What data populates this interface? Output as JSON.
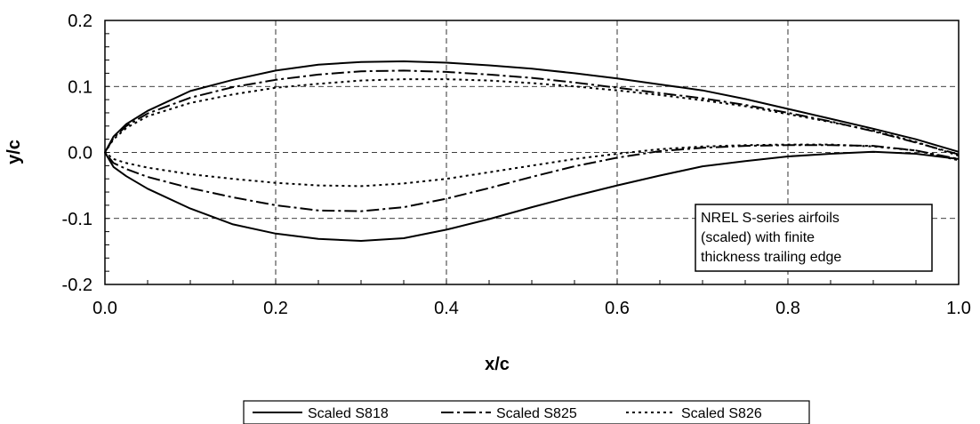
{
  "chart_data": {
    "type": "line",
    "title": "",
    "xlabel": "x/c",
    "ylabel": "y/c",
    "xlim": [
      0.0,
      1.0
    ],
    "ylim": [
      -0.2,
      0.2
    ],
    "xticks": [
      0.0,
      0.2,
      0.4,
      0.6,
      0.8,
      1.0
    ],
    "xtick_labels": [
      "0.0",
      "0.2",
      "0.4",
      "0.6",
      "0.8",
      "1.0"
    ],
    "yticks": [
      -0.2,
      -0.1,
      0.0,
      0.1,
      0.2
    ],
    "ytick_labels": [
      "-0.2",
      "-0.1",
      "0.0",
      "0.1",
      "0.2"
    ],
    "grid": true,
    "legend_position": "bottom",
    "annotation": [
      "NREL S-series airfoils",
      "(scaled) with finite",
      "thickness trailing edge"
    ],
    "series": [
      {
        "name": "Scaled S818",
        "dash": "solid",
        "points": [
          [
            1.0,
            0.001
          ],
          [
            0.95,
            0.02
          ],
          [
            0.9,
            0.036
          ],
          [
            0.85,
            0.051
          ],
          [
            0.8,
            0.066
          ],
          [
            0.75,
            0.081
          ],
          [
            0.7,
            0.094
          ],
          [
            0.65,
            0.103
          ],
          [
            0.6,
            0.112
          ],
          [
            0.55,
            0.12
          ],
          [
            0.5,
            0.127
          ],
          [
            0.45,
            0.132
          ],
          [
            0.4,
            0.136
          ],
          [
            0.35,
            0.138
          ],
          [
            0.3,
            0.137
          ],
          [
            0.25,
            0.133
          ],
          [
            0.2,
            0.124
          ],
          [
            0.15,
            0.11
          ],
          [
            0.1,
            0.093
          ],
          [
            0.05,
            0.063
          ],
          [
            0.025,
            0.043
          ],
          [
            0.01,
            0.024
          ],
          [
            0.0,
            0.0
          ],
          [
            0.01,
            -0.022
          ],
          [
            0.025,
            -0.036
          ],
          [
            0.05,
            -0.055
          ],
          [
            0.1,
            -0.085
          ],
          [
            0.15,
            -0.109
          ],
          [
            0.2,
            -0.123
          ],
          [
            0.25,
            -0.131
          ],
          [
            0.3,
            -0.134
          ],
          [
            0.35,
            -0.13
          ],
          [
            0.4,
            -0.117
          ],
          [
            0.45,
            -0.101
          ],
          [
            0.5,
            -0.083
          ],
          [
            0.55,
            -0.066
          ],
          [
            0.6,
            -0.05
          ],
          [
            0.65,
            -0.035
          ],
          [
            0.7,
            -0.021
          ],
          [
            0.75,
            -0.013
          ],
          [
            0.8,
            -0.006
          ],
          [
            0.85,
            -0.002
          ],
          [
            0.9,
            0.001
          ],
          [
            0.95,
            -0.002
          ],
          [
            1.0,
            -0.01
          ]
        ]
      },
      {
        "name": "Scaled S825",
        "dash": "dash-dot",
        "points": [
          [
            1.0,
            -0.003
          ],
          [
            0.95,
            0.015
          ],
          [
            0.9,
            0.032
          ],
          [
            0.85,
            0.047
          ],
          [
            0.8,
            0.06
          ],
          [
            0.75,
            0.072
          ],
          [
            0.7,
            0.082
          ],
          [
            0.65,
            0.09
          ],
          [
            0.6,
            0.098
          ],
          [
            0.55,
            0.106
          ],
          [
            0.5,
            0.113
          ],
          [
            0.45,
            0.118
          ],
          [
            0.4,
            0.122
          ],
          [
            0.35,
            0.124
          ],
          [
            0.3,
            0.123
          ],
          [
            0.25,
            0.118
          ],
          [
            0.2,
            0.11
          ],
          [
            0.15,
            0.099
          ],
          [
            0.1,
            0.083
          ],
          [
            0.05,
            0.059
          ],
          [
            0.025,
            0.04
          ],
          [
            0.01,
            0.022
          ],
          [
            0.0,
            0.0
          ],
          [
            0.01,
            -0.016
          ],
          [
            0.025,
            -0.025
          ],
          [
            0.05,
            -0.037
          ],
          [
            0.1,
            -0.054
          ],
          [
            0.15,
            -0.068
          ],
          [
            0.2,
            -0.08
          ],
          [
            0.25,
            -0.088
          ],
          [
            0.3,
            -0.089
          ],
          [
            0.35,
            -0.083
          ],
          [
            0.4,
            -0.07
          ],
          [
            0.45,
            -0.054
          ],
          [
            0.5,
            -0.037
          ],
          [
            0.55,
            -0.021
          ],
          [
            0.6,
            -0.008
          ],
          [
            0.65,
            0.002
          ],
          [
            0.7,
            0.007
          ],
          [
            0.75,
            0.01
          ],
          [
            0.8,
            0.011
          ],
          [
            0.85,
            0.011
          ],
          [
            0.9,
            0.01
          ],
          [
            0.95,
            0.003
          ],
          [
            1.0,
            -0.01
          ]
        ]
      },
      {
        "name": "Scaled S826",
        "dash": "dotted",
        "points": [
          [
            1.0,
            -0.005
          ],
          [
            0.95,
            0.016
          ],
          [
            0.9,
            0.033
          ],
          [
            0.85,
            0.046
          ],
          [
            0.8,
            0.058
          ],
          [
            0.75,
            0.07
          ],
          [
            0.7,
            0.079
          ],
          [
            0.65,
            0.087
          ],
          [
            0.6,
            0.094
          ],
          [
            0.55,
            0.1
          ],
          [
            0.5,
            0.105
          ],
          [
            0.45,
            0.109
          ],
          [
            0.4,
            0.111
          ],
          [
            0.35,
            0.111
          ],
          [
            0.3,
            0.109
          ],
          [
            0.25,
            0.104
          ],
          [
            0.2,
            0.098
          ],
          [
            0.15,
            0.088
          ],
          [
            0.1,
            0.075
          ],
          [
            0.05,
            0.055
          ],
          [
            0.025,
            0.037
          ],
          [
            0.01,
            0.02
          ],
          [
            0.0,
            0.0
          ],
          [
            0.01,
            -0.01
          ],
          [
            0.025,
            -0.016
          ],
          [
            0.05,
            -0.023
          ],
          [
            0.1,
            -0.033
          ],
          [
            0.15,
            -0.04
          ],
          [
            0.2,
            -0.046
          ],
          [
            0.25,
            -0.05
          ],
          [
            0.3,
            -0.051
          ],
          [
            0.35,
            -0.047
          ],
          [
            0.4,
            -0.04
          ],
          [
            0.45,
            -0.03
          ],
          [
            0.5,
            -0.02
          ],
          [
            0.55,
            -0.01
          ],
          [
            0.6,
            -0.002
          ],
          [
            0.65,
            0.005
          ],
          [
            0.7,
            0.009
          ],
          [
            0.75,
            0.011
          ],
          [
            0.8,
            0.012
          ],
          [
            0.85,
            0.012
          ],
          [
            0.9,
            0.009
          ],
          [
            0.95,
            0.003
          ],
          [
            1.0,
            -0.012
          ]
        ]
      }
    ]
  }
}
